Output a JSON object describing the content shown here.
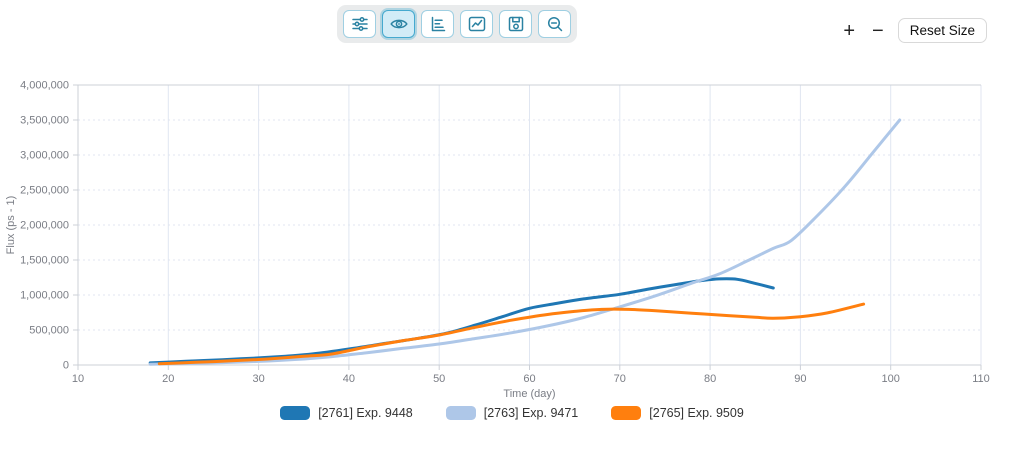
{
  "toolbar": {
    "buttons": [
      {
        "name": "settings",
        "icon": "sliders-icon",
        "active": false
      },
      {
        "name": "visibility",
        "icon": "eye-icon",
        "active": true
      },
      {
        "name": "bar-chart",
        "icon": "bar-chart-icon",
        "active": false
      },
      {
        "name": "line-chart",
        "icon": "line-chart-icon",
        "active": false
      },
      {
        "name": "save",
        "icon": "save-icon",
        "active": false
      },
      {
        "name": "zoom-out",
        "icon": "zoom-out-icon",
        "active": false
      }
    ]
  },
  "size_controls": {
    "increase_label": "+",
    "decrease_label": "−",
    "reset_label": "Reset Size"
  },
  "chart_data": {
    "type": "line",
    "title": "",
    "xlabel": "Time (day)",
    "ylabel": "Flux (ps - 1)",
    "xlim": [
      10,
      110
    ],
    "ylim": [
      0,
      4000000
    ],
    "x_ticks": [
      10,
      20,
      30,
      40,
      50,
      60,
      70,
      80,
      90,
      100,
      110
    ],
    "y_ticks": [
      0,
      500000,
      1000000,
      1500000,
      2000000,
      2500000,
      3000000,
      3500000,
      4000000
    ],
    "y_tick_labels": [
      "0",
      "500,000",
      "1,000,000",
      "1,500,000",
      "2,000,000",
      "2,500,000",
      "3,000,000",
      "3,500,000",
      "4,000,000"
    ],
    "grid": true,
    "legend_position": "bottom",
    "series": [
      {
        "name": "[2761] Exp. 9448",
        "color": "#1f77b4",
        "points": [
          [
            18,
            30000
          ],
          [
            20,
            42000
          ],
          [
            23,
            58000
          ],
          [
            26,
            76000
          ],
          [
            30,
            102000
          ],
          [
            33,
            126000
          ],
          [
            36,
            158000
          ],
          [
            40,
            228000
          ],
          [
            44,
            308000
          ],
          [
            48,
            388000
          ],
          [
            51,
            460000
          ],
          [
            54,
            570000
          ],
          [
            57,
            690000
          ],
          [
            60,
            810000
          ],
          [
            63,
            880000
          ],
          [
            66,
            945000
          ],
          [
            70,
            1010000
          ],
          [
            73,
            1080000
          ],
          [
            76,
            1145000
          ],
          [
            79,
            1205000
          ],
          [
            81,
            1230000
          ],
          [
            83,
            1225000
          ],
          [
            85,
            1165000
          ],
          [
            87,
            1100000
          ]
        ]
      },
      {
        "name": "[2763] Exp. 9471",
        "color": "#aec7e8",
        "points": [
          [
            18,
            12000
          ],
          [
            22,
            22000
          ],
          [
            26,
            35000
          ],
          [
            30,
            52000
          ],
          [
            34,
            78000
          ],
          [
            38,
            118000
          ],
          [
            42,
            175000
          ],
          [
            46,
            238000
          ],
          [
            50,
            300000
          ],
          [
            54,
            378000
          ],
          [
            58,
            460000
          ],
          [
            62,
            558000
          ],
          [
            66,
            678000
          ],
          [
            70,
            830000
          ],
          [
            74,
            990000
          ],
          [
            78,
            1170000
          ],
          [
            81,
            1300000
          ],
          [
            84,
            1480000
          ],
          [
            87,
            1665000
          ],
          [
            89,
            1780000
          ],
          [
            92,
            2150000
          ],
          [
            95,
            2560000
          ],
          [
            98,
            3030000
          ],
          [
            101,
            3500000
          ]
        ]
      },
      {
        "name": "[2765] Exp. 9509",
        "color": "#ff7f0e",
        "points": [
          [
            19,
            18000
          ],
          [
            23,
            38000
          ],
          [
            27,
            60000
          ],
          [
            31,
            86000
          ],
          [
            35,
            125000
          ],
          [
            38,
            155000
          ],
          [
            42,
            258000
          ],
          [
            46,
            348000
          ],
          [
            50,
            428000
          ],
          [
            54,
            538000
          ],
          [
            58,
            640000
          ],
          [
            62,
            722000
          ],
          [
            65,
            765000
          ],
          [
            68,
            795000
          ],
          [
            71,
            795000
          ],
          [
            74,
            775000
          ],
          [
            78,
            740000
          ],
          [
            82,
            705000
          ],
          [
            85,
            682000
          ],
          [
            87,
            668000
          ],
          [
            90,
            690000
          ],
          [
            93,
            745000
          ],
          [
            97,
            870000
          ]
        ]
      }
    ]
  },
  "colors": {
    "icon_teal": "#2a82a2",
    "button_border": "#9fcfe2",
    "active_bg": "#d2ecf7",
    "active_border": "#45a9cf",
    "axis_line": "#ccd0d7",
    "grid_line": "#e0e6f1",
    "tick_text": "#7a7d85"
  }
}
